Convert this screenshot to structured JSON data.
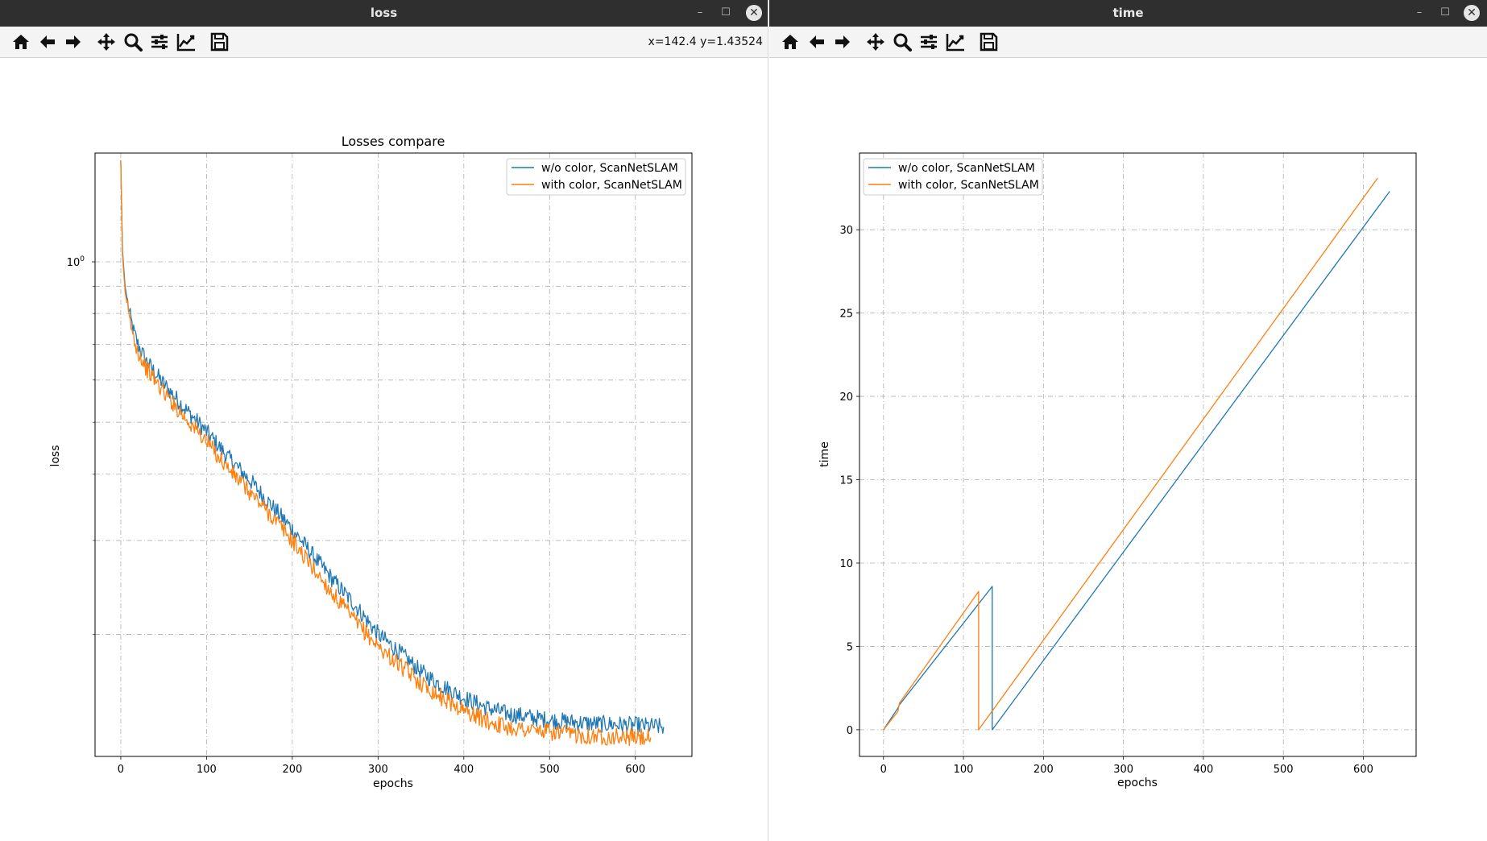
{
  "windows": [
    {
      "title": "loss",
      "controls": {
        "minimize": "–",
        "maximize": "☐",
        "close": "✕"
      },
      "toolbar": [
        "home-icon",
        "back-icon",
        "forward-icon",
        "pan-icon",
        "zoom-icon",
        "configure-subplots-icon",
        "edit-axis-icon",
        "save-icon"
      ],
      "coords": "x=142.4 y=1.43524"
    },
    {
      "title": "time",
      "controls": {
        "minimize": "–",
        "maximize": "☐",
        "close": "✕"
      },
      "toolbar": [
        "home-icon",
        "back-icon",
        "forward-icon",
        "pan-icon",
        "zoom-icon",
        "configure-subplots-icon",
        "edit-axis-icon",
        "save-icon"
      ],
      "coords": ""
    }
  ],
  "colors": {
    "series_blue": "#1f77b4",
    "series_orange": "#ff7f0e",
    "grid": "#b0b0b0",
    "titlebar": "#2f2f2f"
  },
  "chart_data": [
    {
      "type": "line",
      "title": "Losses compare",
      "xlabel": "epochs",
      "ylabel": "loss",
      "yscale": "log",
      "grid": true,
      "legend_position": "top-right",
      "xlim": [
        -30,
        666
      ],
      "ylim": [
        0.118,
        1.6
      ],
      "xticks": [
        0,
        100,
        200,
        300,
        400,
        500,
        600
      ],
      "xtick_labels": [
        "0",
        "100",
        "200",
        "300",
        "400",
        "500",
        "600"
      ],
      "ytick_label": "10",
      "ytick_label_exp": "0",
      "series": [
        {
          "name": "w/o color, ScanNetSLAM",
          "color": "#1f77b4",
          "x_end": 633,
          "points": [
            [
              0,
              1.55
            ],
            [
              2,
              1.05
            ],
            [
              5,
              0.9
            ],
            [
              10,
              0.8
            ],
            [
              15,
              0.74
            ],
            [
              20,
              0.7
            ],
            [
              30,
              0.65
            ],
            [
              50,
              0.59
            ],
            [
              75,
              0.53
            ],
            [
              100,
              0.48
            ],
            [
              125,
              0.43
            ],
            [
              150,
              0.39
            ],
            [
              175,
              0.35
            ],
            [
              200,
              0.315
            ],
            [
              225,
              0.28
            ],
            [
              250,
              0.25
            ],
            [
              275,
              0.225
            ],
            [
              300,
              0.2
            ],
            [
              325,
              0.185
            ],
            [
              350,
              0.17
            ],
            [
              375,
              0.16
            ],
            [
              400,
              0.152
            ],
            [
              425,
              0.146
            ],
            [
              450,
              0.142
            ],
            [
              500,
              0.138
            ],
            [
              550,
              0.136
            ],
            [
              600,
              0.135
            ],
            [
              633,
              0.134
            ]
          ]
        },
        {
          "name": "with color, ScanNetSLAM",
          "color": "#ff7f0e",
          "x_end": 618,
          "points": [
            [
              0,
              1.55
            ],
            [
              2,
              1.03
            ],
            [
              5,
              0.88
            ],
            [
              10,
              0.78
            ],
            [
              15,
              0.72
            ],
            [
              20,
              0.68
            ],
            [
              30,
              0.63
            ],
            [
              50,
              0.57
            ],
            [
              75,
              0.51
            ],
            [
              100,
              0.46
            ],
            [
              125,
              0.41
            ],
            [
              150,
              0.37
            ],
            [
              175,
              0.335
            ],
            [
              200,
              0.3
            ],
            [
              225,
              0.265
            ],
            [
              250,
              0.235
            ],
            [
              275,
              0.21
            ],
            [
              300,
              0.19
            ],
            [
              325,
              0.175
            ],
            [
              350,
              0.162
            ],
            [
              375,
              0.152
            ],
            [
              400,
              0.144
            ],
            [
              425,
              0.138
            ],
            [
              450,
              0.134
            ],
            [
              500,
              0.131
            ],
            [
              550,
              0.129
            ],
            [
              600,
              0.128
            ],
            [
              618,
              0.128
            ]
          ]
        }
      ]
    },
    {
      "type": "line",
      "title": "",
      "xlabel": "epochs",
      "ylabel": "time",
      "grid": true,
      "legend_position": "top-left",
      "xlim": [
        -30,
        666
      ],
      "ylim": [
        -1.6,
        34.6
      ],
      "xticks": [
        0,
        100,
        200,
        300,
        400,
        500,
        600
      ],
      "xtick_labels": [
        "0",
        "100",
        "200",
        "300",
        "400",
        "500",
        "600"
      ],
      "yticks": [
        0,
        5,
        10,
        15,
        20,
        25,
        30
      ],
      "ytick_labels": [
        "0",
        "5",
        "10",
        "15",
        "20",
        "25",
        "30"
      ],
      "series": [
        {
          "name": "w/o color, ScanNetSLAM",
          "color": "#1f77b4",
          "points": [
            [
              0,
              0
            ],
            [
              18,
              1.3
            ],
            [
              20,
              1.5
            ],
            [
              136,
              8.6
            ],
            [
              136,
              0
            ],
            [
              633,
              32.3
            ]
          ]
        },
        {
          "name": "with color, ScanNetSLAM",
          "color": "#ff7f0e",
          "points": [
            [
              0,
              0
            ],
            [
              18,
              1.1
            ],
            [
              20,
              1.6
            ],
            [
              119,
              8.3
            ],
            [
              119,
              0
            ],
            [
              618,
              33.1
            ]
          ]
        }
      ]
    }
  ]
}
